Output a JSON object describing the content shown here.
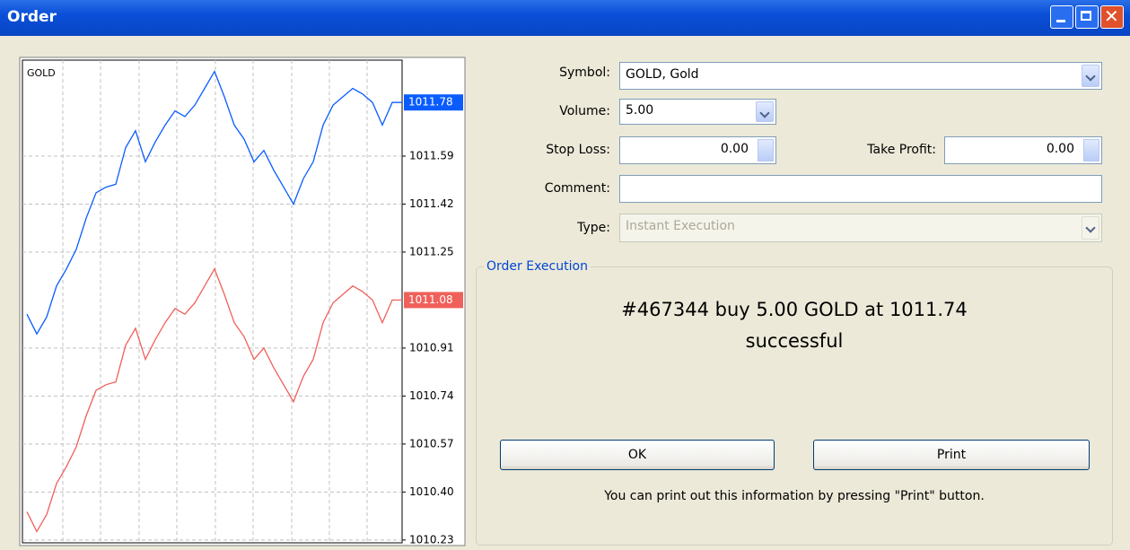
{
  "window": {
    "title": "Order"
  },
  "chart_data": {
    "type": "line",
    "title": "GOLD",
    "ylim": [
      1010.22,
      1011.93
    ],
    "yticks": [
      1011.59,
      1011.42,
      1011.25,
      1010.91,
      1010.74,
      1010.57,
      {
        "value": 1010.4,
        "label": "1010.40"
      },
      1010.23
    ],
    "grid": true,
    "series": [
      {
        "color": "#0a5cff",
        "price_label": 1011.78,
        "values": [
          1011.03,
          1010.96,
          1011.02,
          1011.13,
          1011.19,
          1011.26,
          1011.37,
          1011.46,
          1011.48,
          1011.49,
          1011.62,
          1011.68,
          1011.57,
          1011.64,
          1011.7,
          1011.75,
          1011.73,
          1011.77,
          1011.83,
          1011.89,
          1011.8,
          1011.7,
          1011.65,
          1011.57,
          1011.61,
          1011.54,
          1011.48,
          1011.42,
          1011.51,
          1011.57,
          1011.7,
          1011.77,
          1011.8,
          1011.83,
          1011.81,
          1011.78,
          1011.7,
          1011.78,
          1011.78
        ]
      },
      {
        "color": "#f0605a",
        "price_label": 1011.08,
        "values": [
          1010.33,
          1010.26,
          1010.32,
          1010.43,
          1010.49,
          1010.56,
          1010.67,
          1010.76,
          1010.78,
          1010.79,
          1010.92,
          1010.98,
          1010.87,
          1010.94,
          1011.0,
          1011.05,
          1011.03,
          1011.07,
          1011.13,
          1011.19,
          1011.1,
          1011.0,
          1010.95,
          1010.87,
          1010.91,
          1010.84,
          1010.78,
          1010.72,
          1010.81,
          1010.87,
          1011.0,
          1011.07,
          1011.1,
          1011.13,
          1011.11,
          1011.08,
          1011.0,
          1011.08,
          1011.08
        ]
      }
    ]
  },
  "form": {
    "symbol_label": "Symbol:",
    "symbol": "GOLD, Gold",
    "volume_label": "Volume:",
    "volume": "5.00",
    "stop_loss_label": "Stop Loss:",
    "stop_loss": "0.00",
    "take_profit_label": "Take Profit:",
    "take_profit": "0.00",
    "comment_label": "Comment:",
    "type_label": "Type:",
    "type": "Instant Execution"
  },
  "execution": {
    "legend": "Order Execution",
    "message": "#467344 buy 5.00 GOLD at 1011.74",
    "status": "successful",
    "ok": "OK",
    "print": "Print",
    "hint": "You can print out this information by pressing \"Print\" button."
  }
}
